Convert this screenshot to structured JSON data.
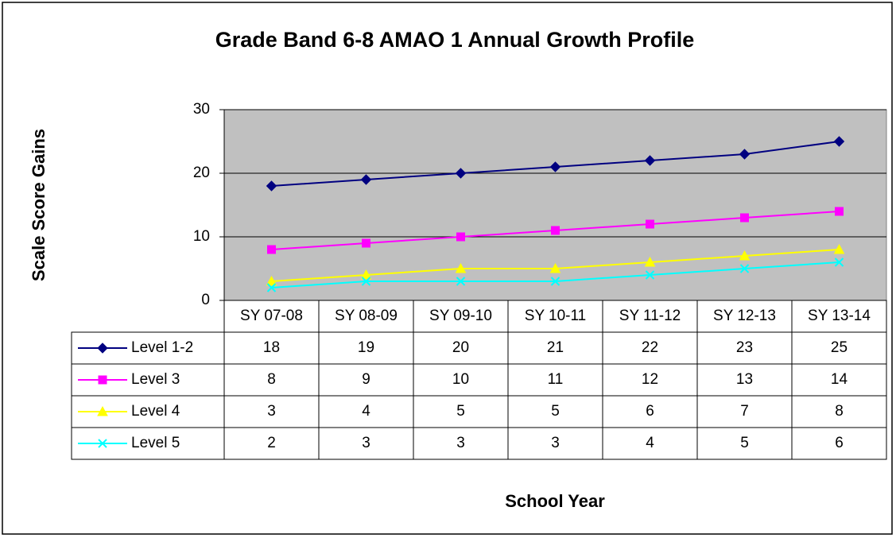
{
  "chart_data": {
    "type": "line",
    "title": "Grade Band 6-8 AMAO 1 Annual Growth Profile",
    "y_label": "Scale Score Gains",
    "x_label": "School Year",
    "categories": [
      "SY 07-08",
      "SY 08-09",
      "SY 09-10",
      "SY 10-11",
      "SY 11-12",
      "SY 12-13",
      "SY 13-14"
    ],
    "series": [
      {
        "name": "Level 1-2",
        "color": "#000080",
        "marker": "diamond",
        "values": [
          18,
          19,
          20,
          21,
          22,
          23,
          25
        ]
      },
      {
        "name": "Level 3",
        "color": "#ff00ff",
        "marker": "square",
        "values": [
          8,
          9,
          10,
          11,
          12,
          13,
          14
        ]
      },
      {
        "name": "Level 4",
        "color": "#ffff00",
        "marker": "triangle",
        "values": [
          3,
          4,
          5,
          5,
          6,
          7,
          8
        ]
      },
      {
        "name": "Level 5",
        "color": "#00ffff",
        "marker": "x",
        "values": [
          2,
          3,
          3,
          3,
          4,
          5,
          6
        ]
      }
    ],
    "ylim": [
      0,
      30
    ],
    "yticks": [
      0,
      10,
      20,
      30
    ],
    "grid": true,
    "plot_background": "#c0c0c0",
    "data_table": true
  }
}
